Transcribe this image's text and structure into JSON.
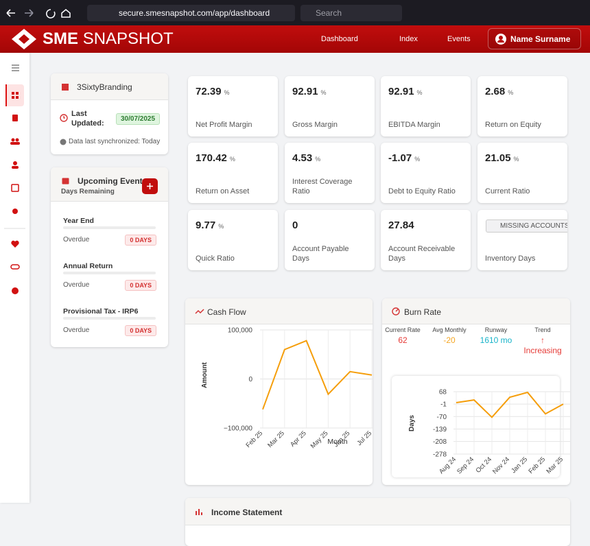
{
  "browser": {
    "url": "secure.smesnapshot.com/app/dashboard",
    "search": "Search"
  },
  "header": {
    "logo_bold": "SME",
    "logo_light": "SNAPSHOT",
    "nav": [
      "Dashboard",
      "Index",
      "Events"
    ],
    "user": "Name Surname"
  },
  "company": {
    "name": "3SixtyBranding",
    "last_updated_label": "Last Updated:",
    "last_updated": "30/07/2025",
    "sync": "Data last synchronized: Today"
  },
  "events": {
    "title": "Upcoming Events",
    "subtitle": "Days Remaining",
    "items": [
      {
        "name": "Year End",
        "status": "Overdue",
        "days": "0 DAYS"
      },
      {
        "name": "Annual Return",
        "status": "Overdue",
        "days": "0 DAYS"
      },
      {
        "name": "Provisional Tax - IRP6",
        "status": "Overdue",
        "days": "0 DAYS"
      }
    ]
  },
  "metrics": [
    {
      "value": 72.39,
      "unit": "%",
      "label": "Net Profit Margin"
    },
    {
      "value": 92.91,
      "unit": "%",
      "label": "Gross Margin"
    },
    {
      "value": 92.91,
      "unit": "%",
      "label": "EBITDA Margin"
    },
    {
      "value": 2.68,
      "unit": "%",
      "label": "Return on Equity"
    },
    {
      "value": 170.42,
      "unit": "%",
      "label": "Return on Asset"
    },
    {
      "value": 4.53,
      "unit": "%",
      "label": "Interest Coverage Ratio"
    },
    {
      "value": -1.07,
      "unit": "%",
      "label": "Debt to Equity Ratio"
    },
    {
      "value": 21.05,
      "unit": "%",
      "label": "Current Ratio"
    },
    {
      "value": 9.77,
      "unit": "%",
      "label": "Quick Ratio"
    },
    {
      "value": 0,
      "label": "Account Payable Days"
    },
    {
      "value": 27.84,
      "label": "Account Receivable Days"
    },
    {
      "badge": "MISSING ACCOUNTS",
      "label": "Inventory Days"
    }
  ],
  "burn_stats": [
    {
      "label": "Current Rate",
      "value": 62,
      "color": "#e53935"
    },
    {
      "label": "Avg Monthly",
      "value": -20,
      "color": "#f5a623"
    },
    {
      "label": "Runway",
      "value": "1610 mo",
      "color": "#17b3c9"
    },
    {
      "label": "Trend",
      "value": "↑ Increasing",
      "color": "#e53935"
    }
  ],
  "income_statement": {
    "title": "Income Statement"
  },
  "chart_data": [
    {
      "type": "line",
      "title": "Cash Flow",
      "xlabel": "Month",
      "ylabel": "Amount",
      "categories": [
        "Feb 25",
        "Mar 25",
        "Apr 25",
        "May 25",
        "Jun 25",
        "Jul 25"
      ],
      "values": [
        -62000,
        60000,
        78000,
        -31000,
        15000,
        8000
      ],
      "color": "#f59e0b",
      "ylim": [
        -100000,
        100000
      ],
      "yticks": [
        {
          "value": 100000,
          "label": "100,000"
        },
        0,
        {
          "value": -100000,
          "label": "−100,000"
        }
      ],
      "grid": true
    },
    {
      "type": "line",
      "title": "Burn Rate",
      "ylabel": "Days",
      "categories": [
        "Aug 24",
        "Sep 24",
        "Oct 24",
        "Nov 24",
        "Jan 25",
        "Feb 25",
        "Mar 25"
      ],
      "values": [
        7,
        22,
        -74,
        37,
        64,
        -55,
        -1
      ],
      "color": "#f59e0b",
      "ylim": [
        -278,
        68
      ],
      "yticks": [
        68,
        -1,
        -70,
        -139,
        -208,
        -278
      ],
      "grid": true
    }
  ]
}
